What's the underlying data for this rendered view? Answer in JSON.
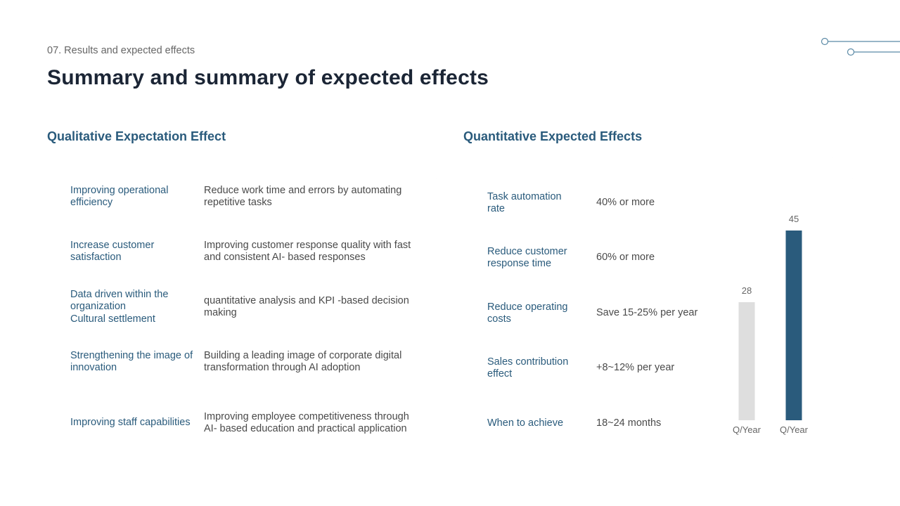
{
  "header": {
    "subtitle": "07. Results and expected effects",
    "title": "Summary and summary of expected effects"
  },
  "qualitative": {
    "heading": "Qualitative Expectation Effect",
    "rows": [
      {
        "label": "Improving operational efficiency",
        "desc": "Reduce work time and errors by automating repetitive tasks"
      },
      {
        "label": "Increase customer satisfaction",
        "desc": "Improving customer response quality with fast and consistent AI- based responses"
      },
      {
        "label": "Data driven within the organization\nCultural settlement",
        "desc": "quantitative analysis and KPI -based decision making"
      },
      {
        "label": "Strengthening the image of innovation",
        "desc": "Building a leading image of corporate digital transformation through AI adoption"
      },
      {
        "label": "Improving staff capabilities",
        "desc": "Improving employee competitiveness through AI- based education and practical application"
      }
    ]
  },
  "quantitative": {
    "heading": "Quantitative Expected Effects",
    "rows": [
      {
        "label": "Task automation rate",
        "desc": "40% or more"
      },
      {
        "label": "Reduce customer response time",
        "desc": "60% or more"
      },
      {
        "label": "Reduce operating costs",
        "desc": "Save 15-25% per year"
      },
      {
        "label": "Sales contribution effect",
        "desc": "+8~12% per year"
      },
      {
        "label": "When to achieve",
        "desc": "18~24 months"
      }
    ]
  },
  "chart_data": {
    "type": "bar",
    "categories": [
      "Q/Year",
      "Q/Year"
    ],
    "values": [
      28,
      45
    ],
    "data_labels": [
      "28",
      "45"
    ],
    "colors": [
      "#dedede",
      "#2a5b7c"
    ],
    "ylim": [
      0,
      50
    ],
    "grid": false,
    "title": "",
    "xlabel": "",
    "ylabel": ""
  },
  "colors": {
    "accent": "#2a5b7c",
    "title": "#1b2535",
    "deco": "#5b8aa6"
  }
}
